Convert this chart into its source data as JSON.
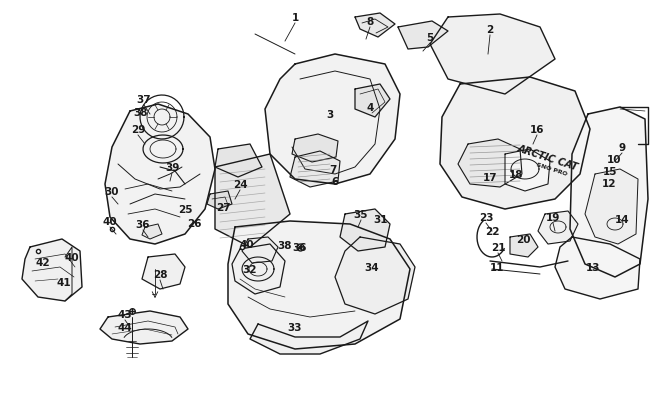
{
  "bg_color": "#ffffff",
  "line_color": "#1a1a1a",
  "fig_width": 6.5,
  "fig_height": 4.06,
  "dpi": 100,
  "labels": [
    [
      "1",
      295,
      18
    ],
    [
      "8",
      370,
      22
    ],
    [
      "5",
      430,
      38
    ],
    [
      "2",
      490,
      30
    ],
    [
      "3",
      330,
      115
    ],
    [
      "4",
      370,
      108
    ],
    [
      "7",
      333,
      170
    ],
    [
      "6",
      335,
      182
    ],
    [
      "16",
      537,
      130
    ],
    [
      "17",
      490,
      178
    ],
    [
      "18",
      516,
      175
    ],
    [
      "9",
      622,
      148
    ],
    [
      "10",
      614,
      160
    ],
    [
      "15",
      610,
      172
    ],
    [
      "12",
      609,
      184
    ],
    [
      "14",
      622,
      220
    ],
    [
      "13",
      593,
      268
    ],
    [
      "37",
      144,
      100
    ],
    [
      "38",
      141,
      113
    ],
    [
      "29",
      138,
      130
    ],
    [
      "39",
      172,
      168
    ],
    [
      "30",
      112,
      192
    ],
    [
      "36",
      143,
      225
    ],
    [
      "40",
      110,
      222
    ],
    [
      "24",
      240,
      185
    ],
    [
      "25",
      185,
      210
    ],
    [
      "26",
      194,
      224
    ],
    [
      "27",
      223,
      208
    ],
    [
      "28",
      160,
      275
    ],
    [
      "23",
      486,
      218
    ],
    [
      "22",
      492,
      232
    ],
    [
      "21",
      498,
      248
    ],
    [
      "11",
      497,
      268
    ],
    [
      "19",
      553,
      218
    ],
    [
      "20",
      523,
      240
    ],
    [
      "35",
      361,
      215
    ],
    [
      "31",
      381,
      220
    ],
    [
      "40",
      247,
      245
    ],
    [
      "36",
      300,
      248
    ],
    [
      "38",
      285,
      246
    ],
    [
      "32",
      250,
      270
    ],
    [
      "34",
      372,
      268
    ],
    [
      "33",
      295,
      328
    ],
    [
      "40",
      72,
      258
    ],
    [
      "42",
      43,
      263
    ],
    [
      "41",
      64,
      283
    ],
    [
      "43",
      125,
      315
    ],
    [
      "44",
      125,
      328
    ]
  ],
  "callout_lines": [
    [
      295,
      24,
      285,
      42
    ],
    [
      370,
      28,
      366,
      40
    ],
    [
      430,
      44,
      423,
      52
    ],
    [
      490,
      36,
      488,
      55
    ],
    [
      622,
      154,
      615,
      162
    ],
    [
      537,
      136,
      533,
      145
    ],
    [
      240,
      191,
      235,
      200
    ],
    [
      144,
      106,
      150,
      115
    ],
    [
      138,
      136,
      145,
      145
    ],
    [
      172,
      174,
      170,
      182
    ],
    [
      112,
      198,
      118,
      205
    ],
    [
      143,
      231,
      148,
      238
    ],
    [
      110,
      228,
      116,
      235
    ],
    [
      160,
      281,
      163,
      290
    ],
    [
      486,
      224,
      492,
      232
    ],
    [
      498,
      254,
      502,
      262
    ],
    [
      553,
      224,
      555,
      232
    ],
    [
      361,
      221,
      358,
      228
    ],
    [
      125,
      321,
      130,
      328
    ]
  ]
}
